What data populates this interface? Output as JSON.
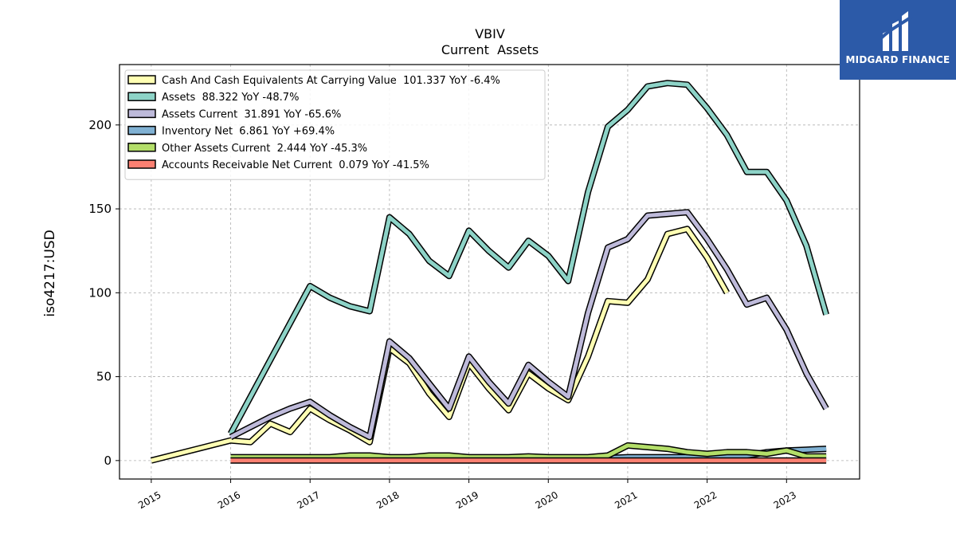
{
  "logo": {
    "text": "MIDGARD FINANCE",
    "background": "#2c5aa8"
  },
  "chart_data": {
    "type": "line",
    "title": "VBIV",
    "subtitle": "Current  Assets",
    "ylabel": "iso4217:USD",
    "xlabel": "",
    "xlim": [
      2014.6,
      2023.92
    ],
    "ylim": [
      -11,
      236
    ],
    "xticks": [
      2015,
      2016,
      2017,
      2018,
      2019,
      2020,
      2021,
      2022,
      2023
    ],
    "xtick_labels": [
      "2015",
      "2016",
      "2017",
      "2018",
      "2019",
      "2020",
      "2021",
      "2022",
      "2023"
    ],
    "yticks": [
      0,
      50,
      100,
      150,
      200
    ],
    "ytick_labels": [
      "0",
      "50",
      "100",
      "150",
      "200"
    ],
    "grid": true,
    "legend_position": "top-left",
    "series": [
      {
        "name": "Cash And Cash Equivalents At Carrying Value  101.337 YoY -6.4%",
        "color": "#ffffb3",
        "points": [
          [
            2015.0,
            0
          ],
          [
            2016.0,
            12
          ],
          [
            2016.25,
            11
          ],
          [
            2016.5,
            22
          ],
          [
            2016.75,
            17
          ],
          [
            2017.0,
            31
          ],
          [
            2017.25,
            24
          ],
          [
            2017.5,
            18
          ],
          [
            2017.75,
            11
          ],
          [
            2018.0,
            67
          ],
          [
            2018.25,
            58
          ],
          [
            2018.5,
            40
          ],
          [
            2018.75,
            26
          ],
          [
            2019.0,
            58
          ],
          [
            2019.25,
            43
          ],
          [
            2019.5,
            30
          ],
          [
            2019.75,
            52
          ],
          [
            2020.0,
            43
          ],
          [
            2020.25,
            36
          ],
          [
            2020.5,
            62
          ],
          [
            2020.75,
            95
          ],
          [
            2021.0,
            94
          ],
          [
            2021.25,
            108
          ],
          [
            2021.5,
            135
          ],
          [
            2021.75,
            138
          ],
          [
            2022.0,
            121
          ],
          [
            2022.25,
            100
          ]
        ]
      },
      {
        "name": "Assets  88.322 YoY -48.7%",
        "color": "#8dd3c7",
        "points": [
          [
            2016.0,
            16
          ],
          [
            2017.0,
            104
          ],
          [
            2017.25,
            97
          ],
          [
            2017.5,
            92
          ],
          [
            2017.75,
            89
          ],
          [
            2018.0,
            145
          ],
          [
            2018.25,
            135
          ],
          [
            2018.5,
            119
          ],
          [
            2018.75,
            110
          ],
          [
            2019.0,
            137
          ],
          [
            2019.25,
            125
          ],
          [
            2019.5,
            115
          ],
          [
            2019.75,
            131
          ],
          [
            2020.0,
            122
          ],
          [
            2020.25,
            107
          ],
          [
            2020.5,
            160
          ],
          [
            2020.75,
            199
          ],
          [
            2021.0,
            209
          ],
          [
            2021.25,
            223
          ],
          [
            2021.5,
            225
          ],
          [
            2021.75,
            224
          ],
          [
            2022.0,
            210
          ],
          [
            2022.25,
            194
          ],
          [
            2022.5,
            172
          ],
          [
            2022.75,
            172
          ],
          [
            2023.0,
            155
          ],
          [
            2023.25,
            128
          ],
          [
            2023.5,
            87
          ]
        ]
      },
      {
        "name": "Assets Current  31.891 YoY -65.6%",
        "color": "#bebada",
        "points": [
          [
            2016.0,
            14
          ],
          [
            2016.25,
            20
          ],
          [
            2016.5,
            26
          ],
          [
            2016.75,
            31
          ],
          [
            2017.0,
            35
          ],
          [
            2017.25,
            27
          ],
          [
            2017.5,
            20
          ],
          [
            2017.75,
            14
          ],
          [
            2018.0,
            71
          ],
          [
            2018.25,
            61
          ],
          [
            2018.5,
            46
          ],
          [
            2018.75,
            31
          ],
          [
            2019.0,
            62
          ],
          [
            2019.25,
            47
          ],
          [
            2019.5,
            34
          ],
          [
            2019.75,
            57
          ],
          [
            2020.0,
            47
          ],
          [
            2020.25,
            38
          ],
          [
            2020.5,
            88
          ],
          [
            2020.75,
            127
          ],
          [
            2021.0,
            132
          ],
          [
            2021.25,
            146
          ],
          [
            2021.5,
            147
          ],
          [
            2021.75,
            148
          ],
          [
            2022.0,
            132
          ],
          [
            2022.25,
            114
          ],
          [
            2022.5,
            93
          ],
          [
            2022.75,
            97
          ],
          [
            2023.0,
            78
          ],
          [
            2023.25,
            52
          ],
          [
            2023.5,
            31
          ]
        ]
      },
      {
        "name": "Inventory Net  6.861 YoY +69.4%",
        "color": "#80b1d3",
        "points": [
          [
            2016.0,
            1
          ],
          [
            2016.5,
            1
          ],
          [
            2017.0,
            1
          ],
          [
            2017.5,
            1
          ],
          [
            2018.0,
            1
          ],
          [
            2018.5,
            1
          ],
          [
            2019.0,
            1
          ],
          [
            2019.5,
            1
          ],
          [
            2020.0,
            1
          ],
          [
            2020.5,
            1
          ],
          [
            2021.0,
            2
          ],
          [
            2021.25,
            2
          ],
          [
            2021.5,
            2
          ],
          [
            2021.75,
            2
          ],
          [
            2022.0,
            3
          ],
          [
            2022.25,
            3
          ],
          [
            2022.5,
            3
          ],
          [
            2022.75,
            5
          ],
          [
            2023.0,
            6
          ],
          [
            2023.25,
            6.5
          ],
          [
            2023.5,
            7
          ]
        ]
      },
      {
        "name": "Other Assets Current  2.444 YoY -45.3%",
        "color": "#b3de69",
        "points": [
          [
            2016.0,
            2
          ],
          [
            2016.5,
            2
          ],
          [
            2017.0,
            2
          ],
          [
            2017.25,
            2
          ],
          [
            2017.5,
            3
          ],
          [
            2017.75,
            3
          ],
          [
            2018.0,
            2
          ],
          [
            2018.25,
            2
          ],
          [
            2018.5,
            3
          ],
          [
            2018.75,
            3
          ],
          [
            2019.0,
            2
          ],
          [
            2019.5,
            2
          ],
          [
            2019.75,
            2.5
          ],
          [
            2020.0,
            2
          ],
          [
            2020.25,
            2
          ],
          [
            2020.5,
            2
          ],
          [
            2020.75,
            3
          ],
          [
            2021.0,
            9
          ],
          [
            2021.25,
            8
          ],
          [
            2021.5,
            7
          ],
          [
            2021.75,
            5
          ],
          [
            2022.0,
            4
          ],
          [
            2022.25,
            5
          ],
          [
            2022.5,
            5
          ],
          [
            2022.75,
            4
          ],
          [
            2023.0,
            6
          ],
          [
            2023.25,
            2.5
          ],
          [
            2023.5,
            2.5
          ]
        ]
      },
      {
        "name": "Accounts Receivable Net Current  0.079 YoY -41.5%",
        "color": "#fb8072",
        "points": [
          [
            2016.0,
            0
          ],
          [
            2017.0,
            0
          ],
          [
            2018.0,
            0
          ],
          [
            2019.0,
            0
          ],
          [
            2020.0,
            0
          ],
          [
            2021.0,
            0
          ],
          [
            2022.0,
            0
          ],
          [
            2023.0,
            0
          ],
          [
            2023.5,
            0
          ]
        ]
      }
    ]
  }
}
